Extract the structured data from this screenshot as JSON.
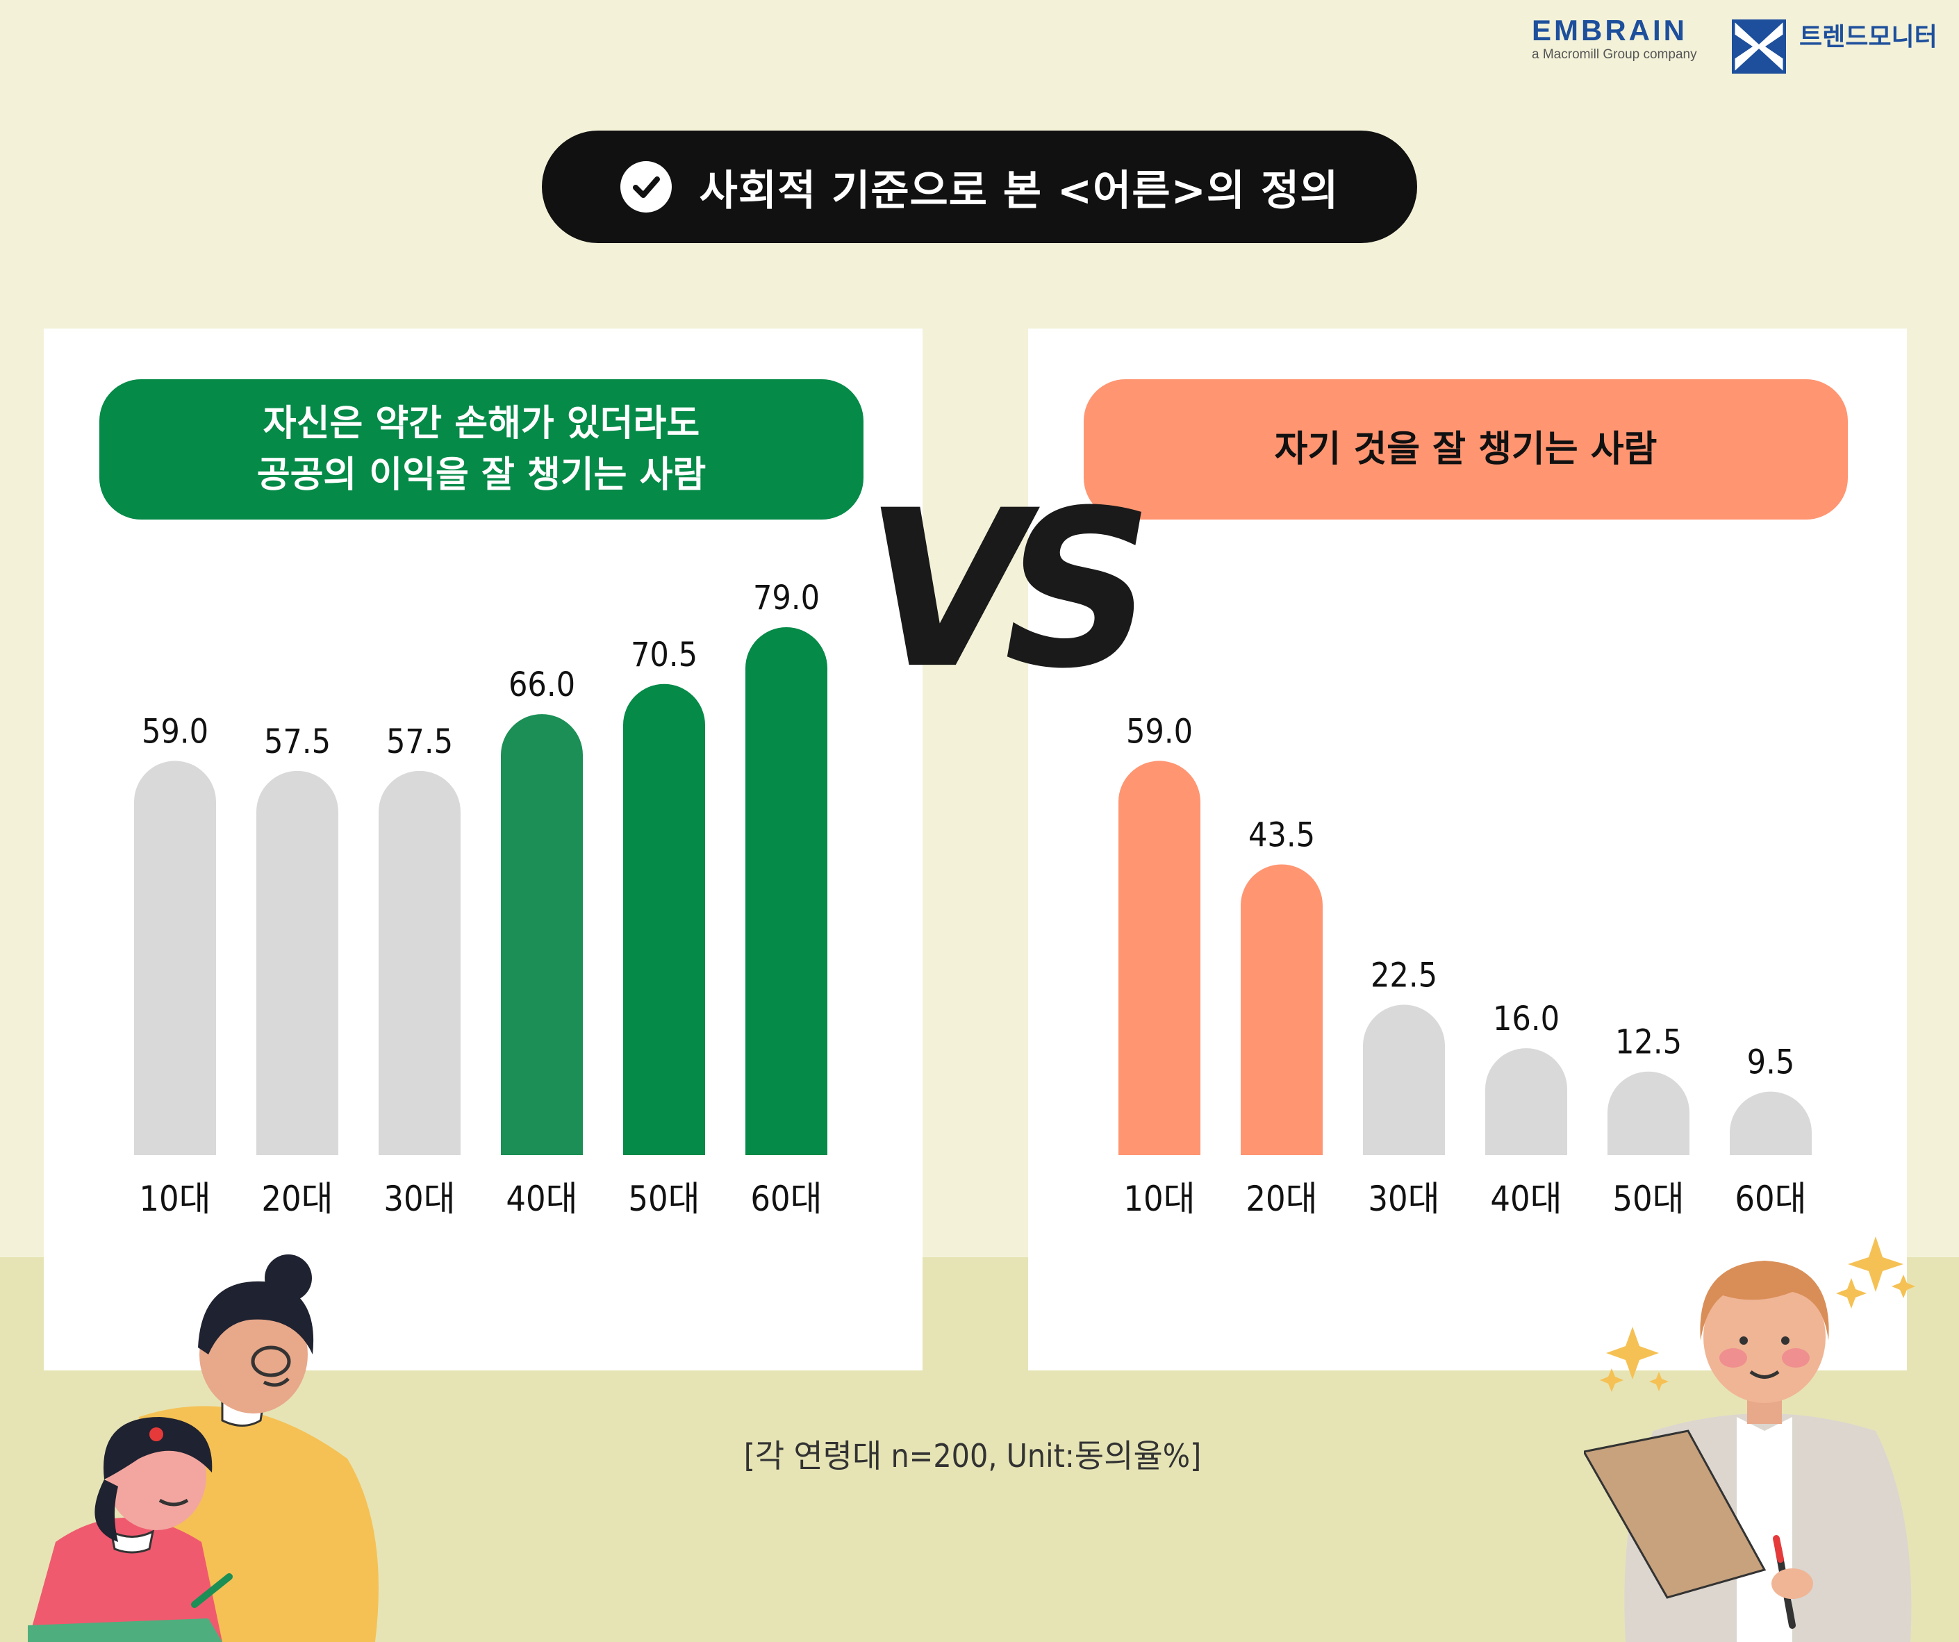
{
  "header": {
    "brand": "EMBRAIN",
    "brand_sub": "a Macromill Group company",
    "partner": "트렌드모니터"
  },
  "title": "사회적 기준으로 본 <어른>의 정의",
  "note": "[각 연령대 n=200, Unit:동의율%]",
  "vs_text": "VS",
  "colors": {
    "background": "#f3f2d9",
    "green": "#058a48",
    "green_light": "#1b8f55",
    "orange": "#ff9571",
    "gray": "#d9d9d9",
    "dark": "#111111"
  },
  "chart_data": [
    {
      "type": "bar",
      "title": "자신은 약간 손해가 있더라도\n공공의 이익을 잘 챙기는 사람",
      "title_lines": [
        "자신은 약간 손해가 있더라도",
        "공공의 이익을 잘 챙기는 사람"
      ],
      "categories": [
        "10대",
        "20대",
        "30대",
        "40대",
        "50대",
        "60대"
      ],
      "values": [
        59.0,
        57.5,
        57.5,
        66.0,
        70.5,
        79.0
      ],
      "value_labels": [
        "59.0",
        "57.5",
        "57.5",
        "66.0",
        "70.5",
        "79.0"
      ],
      "highlight": [
        false,
        false,
        false,
        true,
        true,
        true
      ],
      "highlight_color": "#058a48",
      "ylim": [
        0,
        79
      ]
    },
    {
      "type": "bar",
      "title": "자기 것을 잘 챙기는 사람",
      "title_lines": [
        "자기 것을 잘 챙기는 사람"
      ],
      "categories": [
        "10대",
        "20대",
        "30대",
        "40대",
        "50대",
        "60대"
      ],
      "values": [
        59.0,
        43.5,
        22.5,
        16.0,
        12.5,
        9.5
      ],
      "value_labels": [
        "59.0",
        "43.5",
        "22.5",
        "16.0",
        "12.5",
        "9.5"
      ],
      "highlight": [
        true,
        true,
        false,
        false,
        false,
        false
      ],
      "highlight_color": "#ff9571",
      "ylim": [
        0,
        79
      ]
    }
  ]
}
